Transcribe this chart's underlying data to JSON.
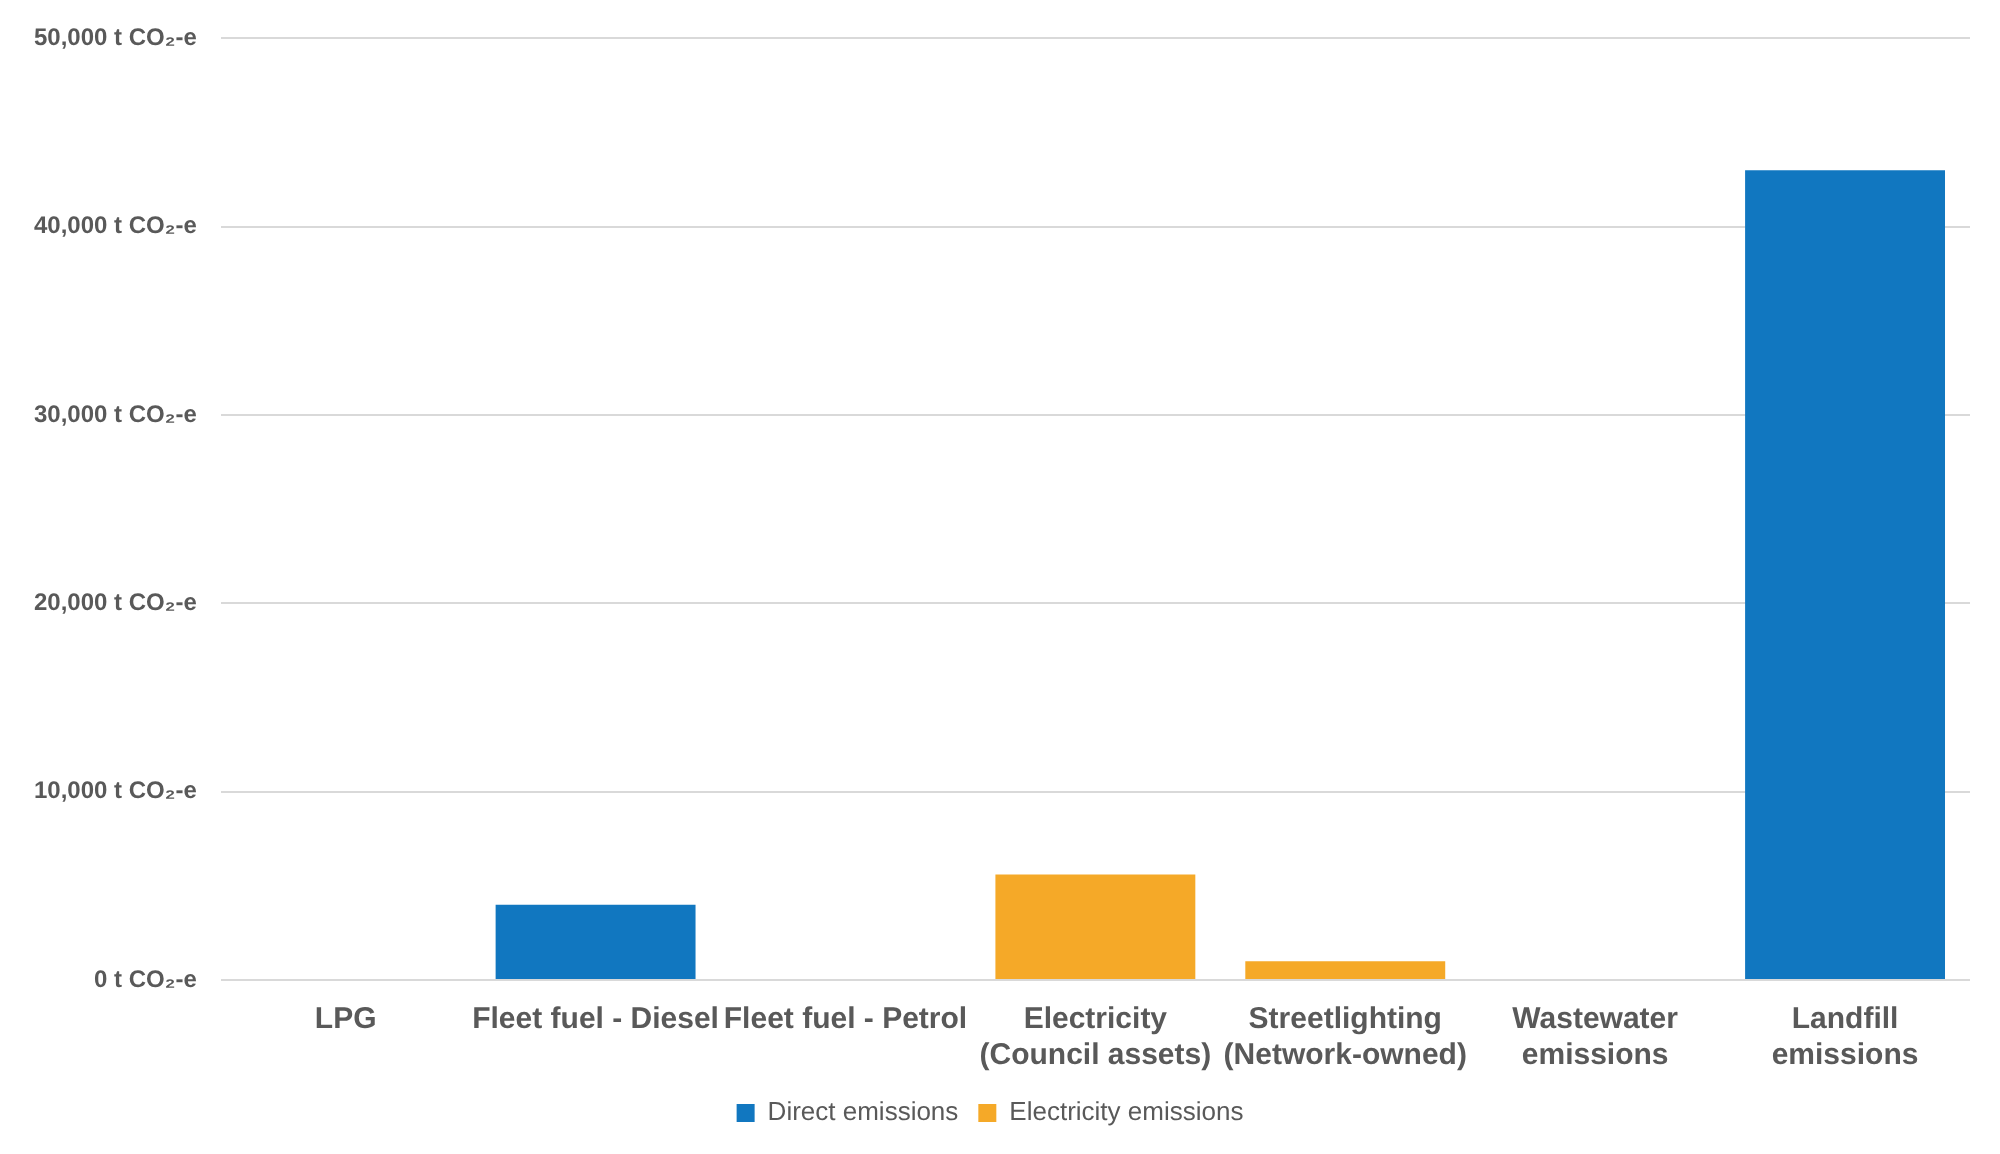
{
  "chart_data": {
    "type": "bar",
    "stacked": true,
    "categories": [
      "LPG",
      "Fleet fuel - Diesel",
      "Fleet fuel - Petrol",
      "Electricity\n(Council assets)",
      "Streetlighting\n(Network-owned)",
      "Wastewater\nemissions",
      "Landfill\nemissions"
    ],
    "series": [
      {
        "name": "Direct emissions",
        "color": "#1177c0",
        "values": [
          null,
          4000,
          null,
          null,
          null,
          null,
          43000
        ]
      },
      {
        "name": "Electricity emissions",
        "color": "#f5a928",
        "values": [
          null,
          null,
          null,
          5600,
          1000,
          null,
          null
        ]
      }
    ],
    "ylim": [
      0,
      50000
    ],
    "yticks": [
      {
        "value": 0,
        "label": "0 t CO₂-e"
      },
      {
        "value": 10000,
        "label": "10,000 t CO₂-e"
      },
      {
        "value": 20000,
        "label": "20,000 t CO₂-e"
      },
      {
        "value": 30000,
        "label": "30,000 t CO₂-e"
      },
      {
        "value": 40000,
        "label": "40,000 t CO₂-e"
      },
      {
        "value": 50000,
        "label": "50,000 t CO₂-e"
      }
    ],
    "grid": "y",
    "legend": "bottom"
  }
}
